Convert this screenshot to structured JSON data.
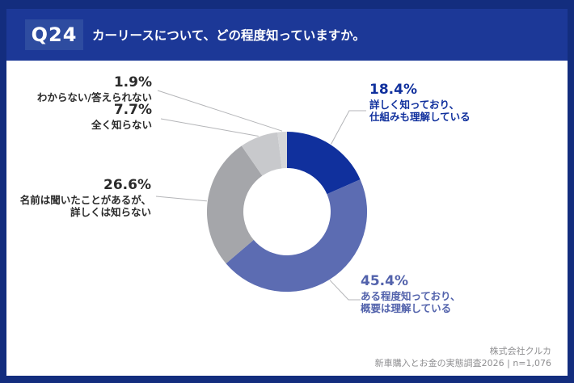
{
  "header": {
    "question_number": "Q24",
    "question_text": "カーリースについて、どの程度知っていますか。"
  },
  "colors": {
    "frame_bg": "#132d7e",
    "header_bg": "#1c3897",
    "badge_bg": "#2e4ca0",
    "panel_bg": "#ffffff",
    "leader_line": "#b4b5b8",
    "left_label_text": "#2b2b2b",
    "footer_text": "#8e8e90"
  },
  "chart_data": {
    "type": "pie",
    "subtype": "donut",
    "title": "カーリースについて、どの程度知っていますか。",
    "start_angle_deg": 0,
    "direction": "clockwise",
    "legend": "none (leader-line labels)",
    "units": "%",
    "total": 100.0,
    "segments": [
      {
        "label": "詳しく知っており、仕組みも理解している",
        "value": 18.4,
        "pct_label": "18.4%",
        "label_lines": [
          "詳しく知っており、",
          "仕組みも理解している"
        ],
        "color": "#10309d",
        "label_color": "#10309d"
      },
      {
        "label": "ある程度知っており、概要は理解している",
        "value": 45.4,
        "pct_label": "45.4%",
        "label_lines": [
          "ある程度知っており、",
          "概要は理解している"
        ],
        "color": "#5c6cb2",
        "label_color": "#5363ac"
      },
      {
        "label": "名前は聞いたことがあるが、詳しくは知らない",
        "value": 26.6,
        "pct_label": "26.6%",
        "label_lines": [
          "名前は聞いたことがあるが、",
          "詳しくは知らない"
        ],
        "color": "#a5a6aa",
        "label_color": "#2b2b2b"
      },
      {
        "label": "全く知らない",
        "value": 7.7,
        "pct_label": "7.7%",
        "label_lines": [
          "全く知らない"
        ],
        "color": "#c8c9cc",
        "label_color": "#2b2b2b"
      },
      {
        "label": "わからない/答えられない",
        "value": 1.9,
        "pct_label": "1.9%",
        "label_lines": [
          "わからない/答えられない"
        ],
        "color": "#d5d6d8",
        "label_color": "#2b2b2b"
      }
    ]
  },
  "footer": {
    "company": "株式会社クルカ",
    "survey": "新車購入とお金の実態調査2026 | n=1,076"
  }
}
